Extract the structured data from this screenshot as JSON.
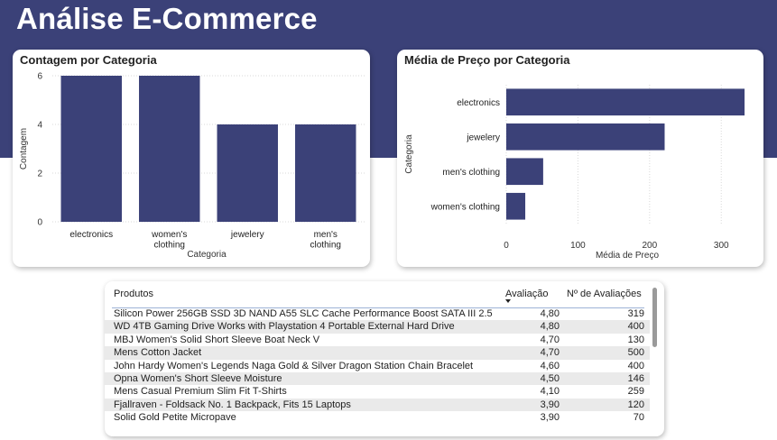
{
  "page": {
    "title": "Análise E-Commerce"
  },
  "colors": {
    "banner": "#3b4178",
    "bar": "#3b4178"
  },
  "chart_data": [
    {
      "type": "bar",
      "title": "Contagem por Categoria",
      "xlabel": "Categoria",
      "ylabel": "Contagem",
      "categories": [
        "electronics",
        "women's clothing",
        "jewelery",
        "men's clothing"
      ],
      "values": [
        6,
        6,
        4,
        4
      ],
      "ylim": [
        0,
        6
      ],
      "yticks": [
        0,
        2,
        4,
        6
      ],
      "grid": true
    },
    {
      "type": "bar",
      "orientation": "horizontal",
      "title": "Média de Preço por Categoria",
      "xlabel": "Média de Preço",
      "ylabel": "Categoria",
      "categories": [
        "electronics",
        "jewelery",
        "men's clothing",
        "women's clothing"
      ],
      "values": [
        332.5,
        221,
        51.5,
        26.5
      ],
      "xlim": [
        0,
        340
      ],
      "xticks": [
        0,
        100,
        200,
        300
      ],
      "grid": true
    }
  ],
  "table": {
    "headers": {
      "product": "Produtos",
      "rating": "Avaliação",
      "count": "Nº de Avaliações"
    },
    "sorted_by": "rating",
    "rows": [
      {
        "product": "Silicon Power 256GB SSD 3D NAND A55 SLC Cache Performance Boost SATA III 2.5",
        "rating": "4,80",
        "count": "319"
      },
      {
        "product": "WD 4TB Gaming Drive Works with Playstation 4 Portable External Hard Drive",
        "rating": "4,80",
        "count": "400"
      },
      {
        "product": "MBJ Women's Solid Short Sleeve Boat Neck V",
        "rating": "4,70",
        "count": "130"
      },
      {
        "product": "Mens Cotton Jacket",
        "rating": "4,70",
        "count": "500"
      },
      {
        "product": "John Hardy Women's Legends Naga Gold & Silver Dragon Station Chain Bracelet",
        "rating": "4,60",
        "count": "400"
      },
      {
        "product": "Opna Women's Short Sleeve Moisture",
        "rating": "4,50",
        "count": "146"
      },
      {
        "product": "Mens Casual Premium Slim Fit T-Shirts",
        "rating": "4,10",
        "count": "259"
      },
      {
        "product": "Fjallraven - Foldsack No. 1 Backpack, Fits 15 Laptops",
        "rating": "3,90",
        "count": "120"
      },
      {
        "product": "Solid Gold Petite Micropave",
        "rating": "3,90",
        "count": "70"
      }
    ]
  }
}
